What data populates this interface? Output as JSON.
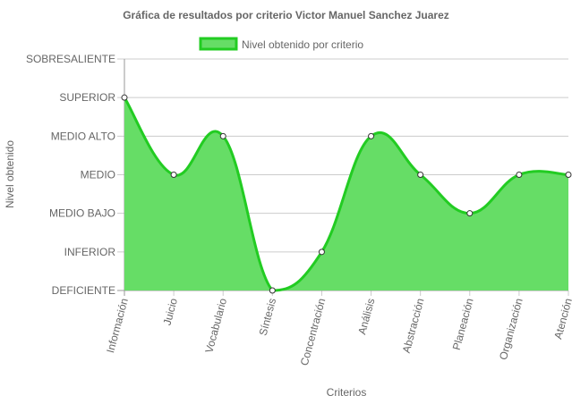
{
  "chart_data": {
    "type": "area",
    "title": "Gráfica de resultados por criterio Victor Manuel Sanchez Juarez",
    "xlabel": "Criterios",
    "ylabel": "Nivel obtenido",
    "legend_position": "top",
    "grid": true,
    "y_levels": [
      "DEFICIENTE",
      "INFERIOR",
      "MEDIO BAJO",
      "MEDIO",
      "MEDIO ALTO",
      "SUPERIOR",
      "SOBRESALIENTE"
    ],
    "ylim": [
      0,
      6
    ],
    "categories": [
      "Información",
      "Juicio",
      "Vocabulario",
      "Síntesis",
      "Concentración",
      "Análisis",
      "Abstracción",
      "Planeación",
      "Organización",
      "Atención"
    ],
    "series": [
      {
        "name": "Nivel obtenido por criterio",
        "values": [
          5,
          3,
          4,
          0,
          1,
          4,
          3,
          2,
          3,
          3
        ],
        "fill_color": "#66dd66",
        "line_color": "#22cc22"
      }
    ]
  }
}
